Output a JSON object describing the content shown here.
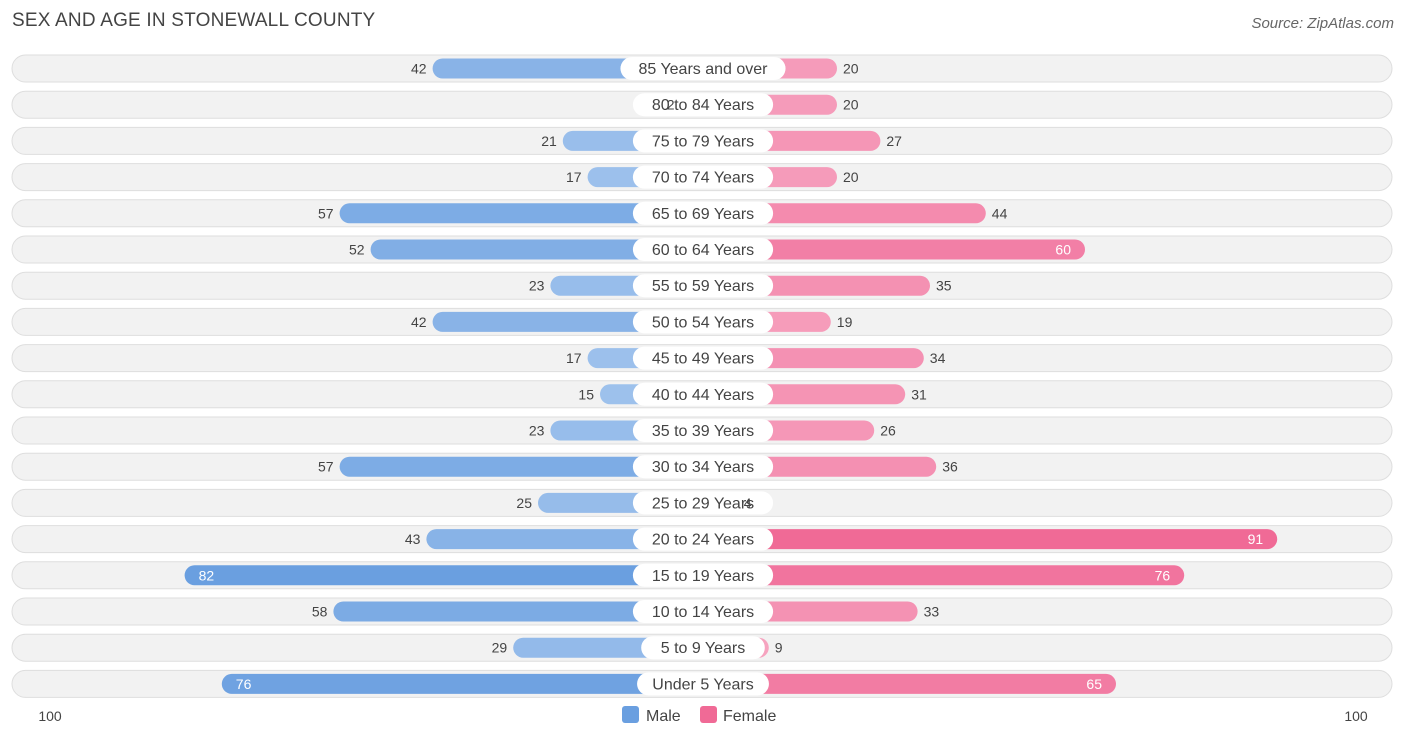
{
  "title": "SEX AND AGE IN STONEWALL COUNTY",
  "source": "Source: ZipAtlas.com",
  "colors": {
    "male_dark": "#6a9fe0",
    "male_light": "#a9c9ef",
    "female_dark": "#f06a96",
    "female_light": "#f7a9c4"
  },
  "chart_data": {
    "type": "bar",
    "orientation": "horizontal-diverging",
    "title": "SEX AND AGE IN STONEWALL COUNTY",
    "categories": [
      "85 Years and over",
      "80 to 84 Years",
      "75 to 79 Years",
      "70 to 74 Years",
      "65 to 69 Years",
      "60 to 64 Years",
      "55 to 59 Years",
      "50 to 54 Years",
      "45 to 49 Years",
      "40 to 44 Years",
      "35 to 39 Years",
      "30 to 34 Years",
      "25 to 29 Years",
      "20 to 24 Years",
      "15 to 19 Years",
      "10 to 14 Years",
      "5 to 9 Years",
      "Under 5 Years"
    ],
    "series": [
      {
        "name": "Male",
        "values": [
          42,
          2,
          21,
          17,
          57,
          52,
          23,
          42,
          17,
          15,
          23,
          57,
          25,
          43,
          82,
          58,
          29,
          76
        ]
      },
      {
        "name": "Female",
        "values": [
          20,
          20,
          27,
          20,
          44,
          60,
          35,
          19,
          34,
          31,
          26,
          36,
          4,
          91,
          76,
          33,
          9,
          65
        ]
      }
    ],
    "axis_max": 100,
    "axis_labels": {
      "left": "100",
      "right": "100"
    },
    "legend": [
      "Male",
      "Female"
    ],
    "legend_position": "bottom-center"
  }
}
